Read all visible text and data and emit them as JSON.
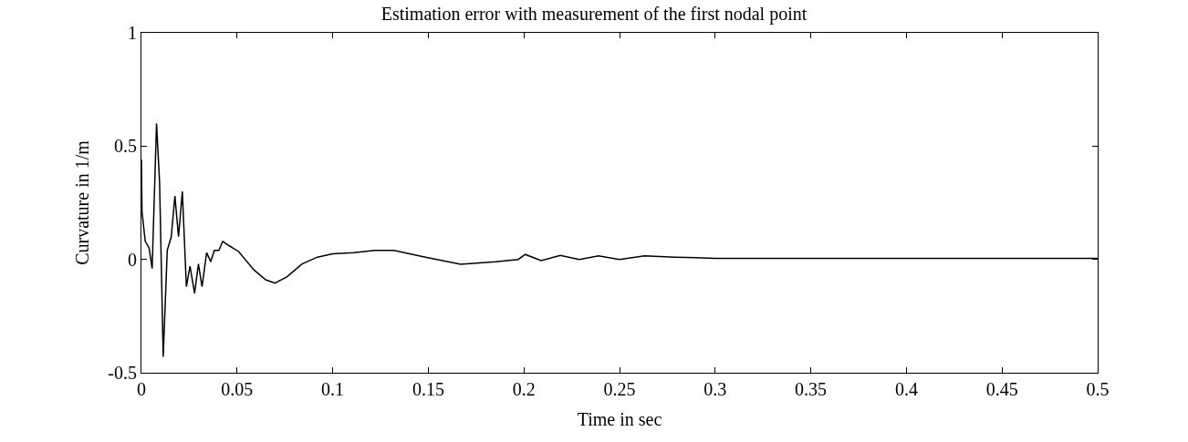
{
  "chart_data": {
    "type": "line",
    "title": "Estimation error with measurement of the first nodal point",
    "xlabel": "Time in sec",
    "ylabel": "Curvature in 1/m",
    "x": [
      0,
      0.0003,
      0.002,
      0.004,
      0.0056,
      0.0079,
      0.0095,
      0.0114,
      0.0135,
      0.0156,
      0.0175,
      0.0194,
      0.0214,
      0.0235,
      0.0254,
      0.0278,
      0.0298,
      0.0317,
      0.0341,
      0.0362,
      0.0381,
      0.0405,
      0.0425,
      0.046,
      0.0508,
      0.0587,
      0.065,
      0.0698,
      0.076,
      0.084,
      0.092,
      0.1,
      0.111,
      0.122,
      0.132,
      0.148,
      0.167,
      0.185,
      0.197,
      0.2007,
      0.209,
      0.219,
      0.229,
      0.239,
      0.25,
      0.263,
      0.279,
      0.3,
      0.35,
      0.4,
      0.45,
      0.5
    ],
    "series": [
      {
        "color": "#000000",
        "values": [
          0.44,
          0.21,
          0.08,
          0.05,
          -0.04,
          0.6,
          0.34,
          -0.43,
          0.04,
          0.1,
          0.28,
          0.1,
          0.3,
          -0.12,
          -0.03,
          -0.15,
          -0.02,
          -0.12,
          0.03,
          -0.01,
          0.04,
          0.04,
          0.08,
          0.06,
          0.035,
          -0.045,
          -0.09,
          -0.105,
          -0.077,
          -0.02,
          0.01,
          0.025,
          0.03,
          0.04,
          0.04,
          0.011,
          -0.021,
          -0.01,
          0,
          0.022,
          -0.005,
          0.018,
          0,
          0.016,
          0,
          0.016,
          0.01,
          0.005,
          0.005,
          0.005,
          0.005,
          0.005
        ]
      }
    ],
    "xlim": [
      0,
      0.5
    ],
    "xticks": [
      0,
      0.05,
      0.1,
      0.15,
      0.2,
      0.25,
      0.3,
      0.35,
      0.4,
      0.45,
      0.5
    ],
    "ylim": [
      -0.5,
      1
    ],
    "yticks": [
      -0.5,
      0,
      0.5,
      1
    ],
    "marker": "none",
    "line_style": "solid"
  }
}
